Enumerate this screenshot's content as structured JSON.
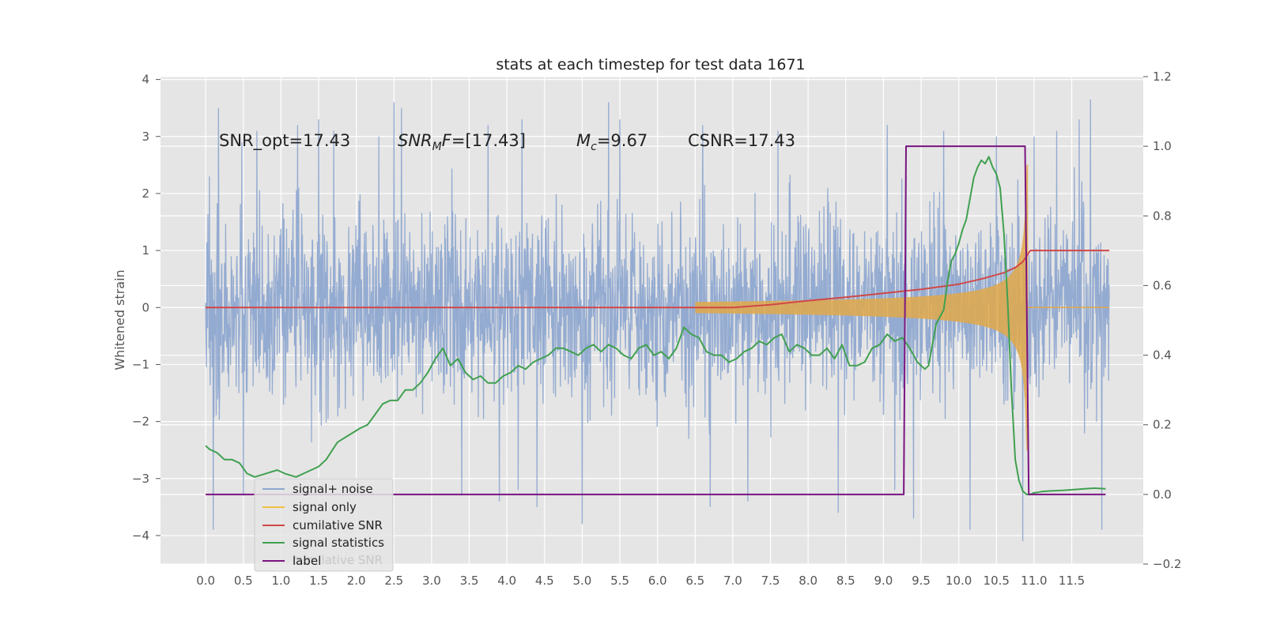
{
  "chart_data": {
    "type": "line",
    "title": "stats at each timestep for test data 1671",
    "xlabel": "",
    "ylabel": "Whitened strain",
    "xlim": [
      -0.6,
      12.45
    ],
    "ylim": [
      -4.5,
      4.05
    ],
    "y2lim": [
      -0.2,
      1.2
    ],
    "grid": true,
    "xticks": [
      "0.0",
      "0.5",
      "1.0",
      "1.5",
      "2.0",
      "2.5",
      "3.0",
      "3.5",
      "4.0",
      "4.5",
      "5.0",
      "5.5",
      "6.0",
      "6.5",
      "7.0",
      "7.5",
      "8.0",
      "8.5",
      "9.0",
      "9.5",
      "10.0",
      "10.5",
      "11.0",
      "11.5"
    ],
    "yticks": [
      "4",
      "3",
      "2",
      "1",
      "0",
      "−1",
      "−2",
      "−3",
      "−4"
    ],
    "y2ticks": [
      "1.2",
      "1.0",
      "0.8",
      "0.6",
      "0.4",
      "0.2",
      "0.0",
      "−0.2"
    ],
    "annotations": [
      {
        "id": "snr_opt",
        "text": "SNR_opt=17.43"
      },
      {
        "id": "snr_mf",
        "text": "SNR_MF=[17.43]"
      },
      {
        "id": "mc",
        "text": "M_c=9.67"
      },
      {
        "id": "csnr",
        "text": "CSNR=17.43"
      }
    ],
    "legend": {
      "position": "lower-left",
      "entries": [
        {
          "label": "signal+ noise",
          "color": "#8fa8d0"
        },
        {
          "label": "signal only",
          "color": "#f0c040"
        },
        {
          "label": "cumilative SNR",
          "color": "#d04848"
        },
        {
          "label": "signal statistics",
          "color": "#40a050"
        },
        {
          "label": "label",
          "color": "#7a1480"
        }
      ],
      "ghost_text": "cumilative SNR"
    },
    "series": [
      {
        "name": "signal+ noise",
        "axis": "left",
        "color": "#8fa8d0",
        "kind": "noise",
        "sigma": 0.95,
        "t": [
          0,
          12.0
        ],
        "peaks": [
          {
            "t": 0.05,
            "y": 2.3
          },
          {
            "t": 0.1,
            "y": -3.9
          },
          {
            "t": 0.17,
            "y": 3.5
          },
          {
            "t": 0.48,
            "y": 2.9
          },
          {
            "t": 0.68,
            "y": 3.1
          },
          {
            "t": 0.5,
            "y": -3.3
          },
          {
            "t": 1.22,
            "y": 3.2
          },
          {
            "t": 1.5,
            "y": 3.3
          },
          {
            "t": 1.7,
            "y": 3.1
          },
          {
            "t": 2.3,
            "y": 3.0
          },
          {
            "t": 2.5,
            "y": 3.6
          },
          {
            "t": 2.6,
            "y": 3.5
          },
          {
            "t": 3.4,
            "y": -3.3
          },
          {
            "t": 3.75,
            "y": 3.2
          },
          {
            "t": 3.9,
            "y": -3.4
          },
          {
            "t": 4.2,
            "y": 3.3
          },
          {
            "t": 4.15,
            "y": -3.2
          },
          {
            "t": 4.4,
            "y": -3.5
          },
          {
            "t": 5.0,
            "y": -3.8
          },
          {
            "t": 5.35,
            "y": 3.6
          },
          {
            "t": 5.5,
            "y": 3.3
          },
          {
            "t": 6.0,
            "y": -1.2
          },
          {
            "t": 6.6,
            "y": 3.2
          },
          {
            "t": 6.7,
            "y": -3.5
          },
          {
            "t": 7.2,
            "y": -3.4
          },
          {
            "t": 7.6,
            "y": 3.1
          },
          {
            "t": 8.4,
            "y": -3.6
          },
          {
            "t": 9.05,
            "y": 3.2
          },
          {
            "t": 9.15,
            "y": -3.2
          },
          {
            "t": 9.4,
            "y": -3.7
          },
          {
            "t": 9.8,
            "y": 3.1
          },
          {
            "t": 10.15,
            "y": -3.9
          },
          {
            "t": 10.5,
            "y": 3.0
          },
          {
            "t": 10.85,
            "y": -4.1
          },
          {
            "t": 11.0,
            "y": 3.0
          },
          {
            "t": 11.3,
            "y": 3.1
          },
          {
            "t": 11.6,
            "y": 3.3
          },
          {
            "t": 11.75,
            "y": 3.65
          },
          {
            "t": 11.9,
            "y": -3.9
          }
        ]
      },
      {
        "name": "signal only",
        "axis": "left",
        "color": "#e0a84a",
        "kind": "chirp",
        "t_start": 6.5,
        "t_merge": 10.92,
        "peak_amplitude": 1.5
      },
      {
        "name": "cumilative SNR",
        "axis": "left",
        "color": "#d04848",
        "x": [
          0.0,
          6.0,
          6.5,
          7.0,
          7.5,
          8.0,
          8.5,
          9.0,
          9.5,
          10.0,
          10.3,
          10.6,
          10.75,
          10.85,
          10.9,
          10.95,
          12.0
        ],
        "y": [
          0.0,
          0.0,
          0.0,
          0.0,
          0.05,
          0.12,
          0.18,
          0.25,
          0.32,
          0.41,
          0.5,
          0.61,
          0.7,
          0.8,
          0.9,
          1.0,
          1.0
        ]
      },
      {
        "name": "signal statistics",
        "axis": "right",
        "color": "#40a050",
        "x": [
          0.0,
          0.05,
          0.15,
          0.25,
          0.35,
          0.45,
          0.55,
          0.65,
          0.8,
          0.95,
          1.05,
          1.2,
          1.3,
          1.4,
          1.5,
          1.6,
          1.75,
          1.9,
          2.05,
          2.15,
          2.25,
          2.35,
          2.45,
          2.55,
          2.65,
          2.75,
          2.85,
          2.95,
          3.05,
          3.15,
          3.25,
          3.35,
          3.45,
          3.55,
          3.65,
          3.75,
          3.85,
          3.95,
          4.05,
          4.15,
          4.25,
          4.35,
          4.45,
          4.55,
          4.65,
          4.75,
          4.85,
          4.95,
          5.05,
          5.15,
          5.25,
          5.35,
          5.45,
          5.55,
          5.65,
          5.75,
          5.85,
          5.95,
          6.05,
          6.15,
          6.25,
          6.35,
          6.45,
          6.55,
          6.65,
          6.75,
          6.85,
          6.95,
          7.05,
          7.15,
          7.25,
          7.35,
          7.45,
          7.55,
          7.65,
          7.75,
          7.85,
          7.95,
          8.05,
          8.15,
          8.25,
          8.35,
          8.45,
          8.55,
          8.65,
          8.75,
          8.85,
          8.95,
          9.05,
          9.15,
          9.25,
          9.35,
          9.45,
          9.5,
          9.55,
          9.6,
          9.65,
          9.7,
          9.75,
          9.8,
          9.85,
          9.9,
          9.95,
          10.0,
          10.05,
          10.1,
          10.15,
          10.2,
          10.25,
          10.3,
          10.35,
          10.4,
          10.45,
          10.5,
          10.55,
          10.6,
          10.65,
          10.7,
          10.75,
          10.8,
          10.85,
          10.9,
          10.95,
          11.0,
          11.05,
          11.1,
          11.2,
          11.4,
          11.6,
          11.8,
          11.95
        ],
        "y": [
          0.14,
          0.13,
          0.12,
          0.1,
          0.1,
          0.09,
          0.06,
          0.05,
          0.06,
          0.07,
          0.06,
          0.05,
          0.06,
          0.07,
          0.08,
          0.1,
          0.15,
          0.17,
          0.19,
          0.2,
          0.23,
          0.26,
          0.27,
          0.27,
          0.3,
          0.3,
          0.32,
          0.35,
          0.39,
          0.42,
          0.37,
          0.39,
          0.35,
          0.33,
          0.34,
          0.32,
          0.32,
          0.34,
          0.35,
          0.37,
          0.36,
          0.38,
          0.39,
          0.4,
          0.42,
          0.42,
          0.41,
          0.4,
          0.42,
          0.43,
          0.41,
          0.43,
          0.42,
          0.4,
          0.39,
          0.42,
          0.43,
          0.4,
          0.41,
          0.39,
          0.42,
          0.48,
          0.46,
          0.45,
          0.41,
          0.4,
          0.4,
          0.38,
          0.39,
          0.41,
          0.42,
          0.44,
          0.43,
          0.45,
          0.46,
          0.41,
          0.43,
          0.42,
          0.4,
          0.4,
          0.42,
          0.39,
          0.43,
          0.37,
          0.37,
          0.38,
          0.42,
          0.43,
          0.46,
          0.44,
          0.45,
          0.42,
          0.38,
          0.37,
          0.36,
          0.37,
          0.43,
          0.49,
          0.51,
          0.53,
          0.61,
          0.67,
          0.69,
          0.72,
          0.76,
          0.79,
          0.85,
          0.91,
          0.94,
          0.96,
          0.95,
          0.97,
          0.94,
          0.92,
          0.88,
          0.75,
          0.55,
          0.3,
          0.1,
          0.04,
          0.01,
          0.0,
          0.0,
          0.005,
          0.006,
          0.008,
          0.01,
          0.012,
          0.015,
          0.018,
          0.016
        ]
      },
      {
        "name": "label",
        "axis": "right",
        "color": "#7a1480",
        "x": [
          0.0,
          9.27,
          9.3,
          10.88,
          10.93,
          11.95
        ],
        "y": [
          0.0,
          0.0,
          1.0,
          1.0,
          0.0,
          0.0
        ]
      }
    ]
  }
}
